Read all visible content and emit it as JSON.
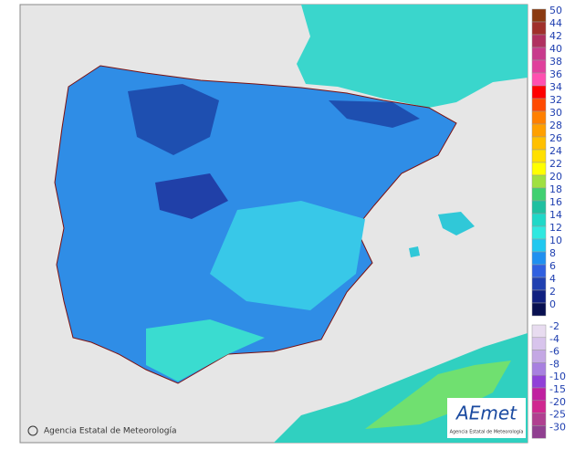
{
  "legend": {
    "positive": [
      {
        "label": 50,
        "color": "#8b3a10"
      },
      {
        "label": 44,
        "color": "#a0302a"
      },
      {
        "label": 42,
        "color": "#b03060"
      },
      {
        "label": 40,
        "color": "#c83a8c"
      },
      {
        "label": 38,
        "color": "#e0409c"
      },
      {
        "label": 36,
        "color": "#ff50b0"
      },
      {
        "label": 34,
        "color": "#ff0000"
      },
      {
        "label": 32,
        "color": "#ff4a00"
      },
      {
        "label": 30,
        "color": "#ff8000"
      },
      {
        "label": 28,
        "color": "#ffa000"
      },
      {
        "label": 26,
        "color": "#ffc000"
      },
      {
        "label": 24,
        "color": "#ffe000"
      },
      {
        "label": 22,
        "color": "#ffff00"
      },
      {
        "label": 20,
        "color": "#a0e040"
      },
      {
        "label": 18,
        "color": "#40d070"
      },
      {
        "label": 16,
        "color": "#20c0a0"
      },
      {
        "label": 14,
        "color": "#20d8c8"
      },
      {
        "label": 12,
        "color": "#30e8e0"
      },
      {
        "label": 10,
        "color": "#20c8f0"
      },
      {
        "label": 8,
        "color": "#2090f0"
      },
      {
        "label": 6,
        "color": "#3060e0"
      },
      {
        "label": 4,
        "color": "#2040b0"
      },
      {
        "label": 2,
        "color": "#102080"
      },
      {
        "label": 0,
        "color": "#081050"
      }
    ],
    "negative": [
      {
        "label": -2,
        "color": "#e8dcf0"
      },
      {
        "label": -4,
        "color": "#d8c4ec"
      },
      {
        "label": -6,
        "color": "#c4a8e4"
      },
      {
        "label": -8,
        "color": "#a880e0"
      },
      {
        "label": -10,
        "color": "#9040d8"
      },
      {
        "label": -15,
        "color": "#c020a0"
      },
      {
        "label": -20,
        "color": "#d02890"
      },
      {
        "label": -25,
        "color": "#b04090"
      },
      {
        "label": -30,
        "color": "#904090"
      }
    ]
  },
  "credit": "Agencia Estatal de Meteorología",
  "logo": {
    "name": "AEmet",
    "subtitle": "Agencia Estatal de Meteorología"
  }
}
